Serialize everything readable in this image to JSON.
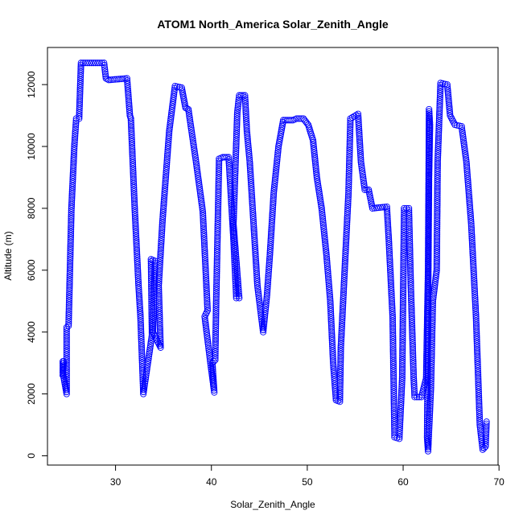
{
  "chart_data": {
    "type": "scatter",
    "title": "ATOM1 North_America Solar_Zenith_Angle",
    "xlabel": "Solar_Zenith_Angle",
    "ylabel": "Altitude (m)",
    "xlim": [
      22.9,
      69.9
    ],
    "ylim": [
      -300,
      13200
    ],
    "x_ticks": [
      30,
      40,
      50,
      60,
      70
    ],
    "y_ticks": [
      0,
      2000,
      4000,
      6000,
      8000,
      10000,
      12000
    ],
    "grid": false,
    "color": "#0000ff",
    "marker": "open-circle",
    "track": [
      [
        24.5,
        2600
      ],
      [
        24.6,
        3050
      ],
      [
        24.5,
        3050
      ],
      [
        24.5,
        2700
      ],
      [
        24.9,
        2000
      ],
      [
        24.9,
        2800
      ],
      [
        24.9,
        4150
      ],
      [
        25.1,
        4200
      ],
      [
        25.4,
        8000
      ],
      [
        25.7,
        10000
      ],
      [
        25.9,
        10900
      ],
      [
        26.2,
        10900
      ],
      [
        26.4,
        12700
      ],
      [
        28.8,
        12700
      ],
      [
        29.0,
        12200
      ],
      [
        29.3,
        12150
      ],
      [
        31.2,
        12200
      ],
      [
        31.3,
        11800
      ],
      [
        31.5,
        11000
      ],
      [
        31.6,
        10900
      ],
      [
        32.0,
        8000
      ],
      [
        32.4,
        5500
      ],
      [
        32.6,
        4500
      ],
      [
        32.9,
        2000
      ],
      [
        33.8,
        3900
      ],
      [
        33.7,
        6350
      ],
      [
        34.1,
        6300
      ],
      [
        33.9,
        4000
      ],
      [
        34.7,
        3500
      ],
      [
        34.5,
        5500
      ],
      [
        34.9,
        7600
      ],
      [
        35.6,
        10500
      ],
      [
        36.2,
        11950
      ],
      [
        36.9,
        11900
      ],
      [
        37.3,
        11250
      ],
      [
        37.6,
        11200
      ],
      [
        38.4,
        9500
      ],
      [
        39.1,
        7900
      ],
      [
        39.4,
        6000
      ],
      [
        39.6,
        4700
      ],
      [
        39.3,
        4500
      ],
      [
        39.9,
        3000
      ],
      [
        40.3,
        2050
      ],
      [
        40.1,
        3000
      ],
      [
        40.4,
        3100
      ],
      [
        40.5,
        5000
      ],
      [
        40.6,
        6500
      ],
      [
        40.8,
        9600
      ],
      [
        41.2,
        9650
      ],
      [
        41.8,
        9650
      ],
      [
        42.3,
        7000
      ],
      [
        42.6,
        5100
      ],
      [
        42.9,
        5100
      ],
      [
        42.3,
        7500
      ],
      [
        42.7,
        11100
      ],
      [
        42.9,
        11650
      ],
      [
        43.5,
        11650
      ],
      [
        43.7,
        10500
      ],
      [
        44.0,
        9500
      ],
      [
        44.4,
        7500
      ],
      [
        44.8,
        5500
      ],
      [
        45.4,
        4000
      ],
      [
        45.8,
        5200
      ],
      [
        46.1,
        6500
      ],
      [
        46.5,
        8500
      ],
      [
        47.0,
        10000
      ],
      [
        47.5,
        10850
      ],
      [
        48.5,
        10850
      ],
      [
        48.9,
        10900
      ],
      [
        49.6,
        10900
      ],
      [
        50.1,
        10700
      ],
      [
        50.6,
        10200
      ],
      [
        51.0,
        9000
      ],
      [
        51.5,
        8000
      ],
      [
        52.0,
        6500
      ],
      [
        52.4,
        5000
      ],
      [
        52.7,
        3000
      ],
      [
        53.0,
        1800
      ],
      [
        53.4,
        1750
      ],
      [
        53.5,
        3500
      ],
      [
        53.9,
        6000
      ],
      [
        54.3,
        8500
      ],
      [
        54.5,
        10900
      ],
      [
        55.3,
        11050
      ],
      [
        55.6,
        9500
      ],
      [
        56.0,
        8600
      ],
      [
        56.4,
        8600
      ],
      [
        56.8,
        8000
      ],
      [
        58.3,
        8050
      ],
      [
        58.5,
        7000
      ],
      [
        58.9,
        4500
      ],
      [
        59.1,
        600
      ],
      [
        59.6,
        550
      ],
      [
        59.9,
        2500
      ],
      [
        60.1,
        8000
      ],
      [
        60.6,
        8000
      ],
      [
        60.8,
        5500
      ],
      [
        61.1,
        2500
      ],
      [
        61.2,
        1900
      ],
      [
        61.9,
        1900
      ],
      [
        62.4,
        2500
      ],
      [
        62.6,
        6000
      ],
      [
        62.7,
        11200
      ],
      [
        62.8,
        10700
      ],
      [
        62.7,
        9000
      ],
      [
        62.5,
        600
      ],
      [
        62.6,
        150
      ],
      [
        62.9,
        2200
      ],
      [
        63.1,
        5000
      ],
      [
        63.5,
        6000
      ],
      [
        63.6,
        9500
      ],
      [
        63.9,
        12050
      ],
      [
        64.6,
        12000
      ],
      [
        64.9,
        11000
      ],
      [
        65.4,
        10700
      ],
      [
        66.1,
        10650
      ],
      [
        66.6,
        9500
      ],
      [
        67.1,
        7500
      ],
      [
        67.6,
        4500
      ],
      [
        68.0,
        1000
      ],
      [
        68.3,
        200
      ],
      [
        68.6,
        300
      ],
      [
        68.7,
        1100
      ]
    ]
  }
}
